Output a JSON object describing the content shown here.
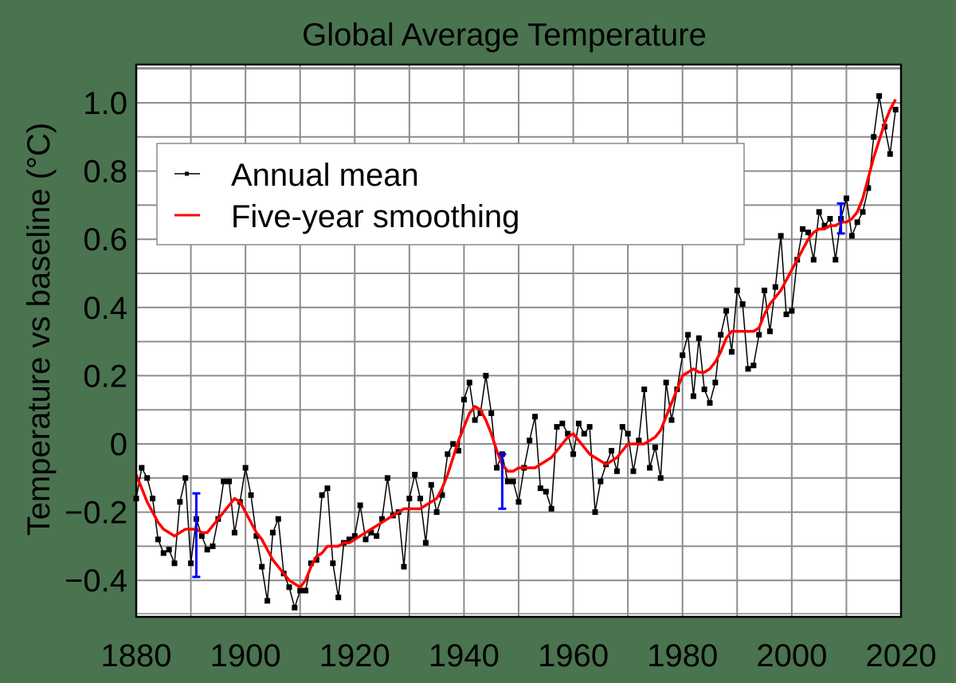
{
  "chart_data": {
    "type": "line",
    "title": "Global Average Temperature",
    "xlabel": "",
    "ylabel": "Temperature vs baseline (°C)",
    "xlim": [
      1880,
      2020
    ],
    "ylim": [
      -0.5,
      1.1
    ],
    "grid": true,
    "x_ticks": [
      1880,
      1900,
      1920,
      1940,
      1960,
      1980,
      2000,
      2020
    ],
    "x_tick_labels": [
      "1880",
      "1900",
      "1920",
      "1940",
      "1960",
      "1980",
      "2000",
      "2020"
    ],
    "y_ticks": [
      -0.4,
      -0.2,
      0,
      0.2,
      0.4,
      0.6,
      0.8,
      1.0
    ],
    "y_tick_labels": [
      "−0.4",
      "−0.2",
      "0",
      "0.2",
      "0.4",
      "0.6",
      "0.8",
      "1.0"
    ],
    "legend": {
      "position": "upper-left",
      "entries": [
        "Annual mean",
        "Five-year smoothing"
      ]
    },
    "x": [
      1880,
      1881,
      1882,
      1883,
      1884,
      1885,
      1886,
      1887,
      1888,
      1889,
      1890,
      1891,
      1892,
      1893,
      1894,
      1895,
      1896,
      1897,
      1898,
      1899,
      1900,
      1901,
      1902,
      1903,
      1904,
      1905,
      1906,
      1907,
      1908,
      1909,
      1910,
      1911,
      1912,
      1913,
      1914,
      1915,
      1916,
      1917,
      1918,
      1919,
      1920,
      1921,
      1922,
      1923,
      1924,
      1925,
      1926,
      1927,
      1928,
      1929,
      1930,
      1931,
      1932,
      1933,
      1934,
      1935,
      1936,
      1937,
      1938,
      1939,
      1940,
      1941,
      1942,
      1943,
      1944,
      1945,
      1946,
      1947,
      1948,
      1949,
      1950,
      1951,
      1952,
      1953,
      1954,
      1955,
      1956,
      1957,
      1958,
      1959,
      1960,
      1961,
      1962,
      1963,
      1964,
      1965,
      1966,
      1967,
      1968,
      1969,
      1970,
      1971,
      1972,
      1973,
      1974,
      1975,
      1976,
      1977,
      1978,
      1979,
      1980,
      1981,
      1982,
      1983,
      1984,
      1985,
      1986,
      1987,
      1988,
      1989,
      1990,
      1991,
      1992,
      1993,
      1994,
      1995,
      1996,
      1997,
      1998,
      1999,
      2000,
      2001,
      2002,
      2003,
      2004,
      2005,
      2006,
      2007,
      2008,
      2009,
      2010,
      2011,
      2012,
      2013,
      2014,
      2015,
      2016,
      2017,
      2018,
      2019
    ],
    "series": [
      {
        "name": "Annual mean",
        "color": "#000000",
        "marker": "square",
        "values": [
          -0.16,
          -0.07,
          -0.1,
          -0.16,
          -0.28,
          -0.32,
          -0.31,
          -0.35,
          -0.17,
          -0.1,
          -0.35,
          -0.22,
          -0.27,
          -0.31,
          -0.3,
          -0.22,
          -0.11,
          -0.11,
          -0.26,
          -0.17,
          -0.07,
          -0.15,
          -0.27,
          -0.36,
          -0.46,
          -0.26,
          -0.22,
          -0.38,
          -0.42,
          -0.48,
          -0.43,
          -0.43,
          -0.35,
          -0.34,
          -0.15,
          -0.13,
          -0.35,
          -0.45,
          -0.29,
          -0.28,
          -0.27,
          -0.18,
          -0.28,
          -0.26,
          -0.27,
          -0.22,
          -0.1,
          -0.21,
          -0.2,
          -0.36,
          -0.16,
          -0.09,
          -0.16,
          -0.29,
          -0.12,
          -0.2,
          -0.15,
          -0.03,
          0.0,
          -0.02,
          0.13,
          0.18,
          0.07,
          0.09,
          0.2,
          0.09,
          -0.07,
          -0.03,
          -0.11,
          -0.11,
          -0.17,
          -0.07,
          0.01,
          0.08,
          -0.13,
          -0.14,
          -0.19,
          0.05,
          0.06,
          0.03,
          -0.03,
          0.06,
          0.03,
          0.05,
          -0.2,
          -0.11,
          -0.06,
          -0.02,
          -0.08,
          0.05,
          0.03,
          -0.08,
          0.01,
          0.16,
          -0.07,
          -0.01,
          -0.1,
          0.18,
          0.07,
          0.16,
          0.26,
          0.32,
          0.14,
          0.31,
          0.16,
          0.12,
          0.18,
          0.32,
          0.39,
          0.27,
          0.45,
          0.41,
          0.22,
          0.23,
          0.32,
          0.45,
          0.33,
          0.46,
          0.61,
          0.38,
          0.39,
          0.54,
          0.63,
          0.62,
          0.54,
          0.68,
          0.64,
          0.66,
          0.54,
          0.66,
          0.72,
          0.61,
          0.65,
          0.68,
          0.75,
          0.9,
          1.02,
          0.93,
          0.85,
          0.98
        ]
      },
      {
        "name": "Five-year smoothing",
        "color": "#ff0000",
        "values": [
          -0.09,
          -0.13,
          -0.17,
          -0.2,
          -0.23,
          -0.25,
          -0.26,
          -0.27,
          -0.26,
          -0.25,
          -0.25,
          -0.25,
          -0.26,
          -0.26,
          -0.24,
          -0.22,
          -0.2,
          -0.18,
          -0.16,
          -0.17,
          -0.2,
          -0.23,
          -0.26,
          -0.28,
          -0.31,
          -0.34,
          -0.36,
          -0.38,
          -0.4,
          -0.41,
          -0.42,
          -0.4,
          -0.36,
          -0.33,
          -0.32,
          -0.3,
          -0.3,
          -0.3,
          -0.29,
          -0.29,
          -0.28,
          -0.27,
          -0.26,
          -0.25,
          -0.24,
          -0.23,
          -0.22,
          -0.21,
          -0.2,
          -0.19,
          -0.19,
          -0.19,
          -0.19,
          -0.18,
          -0.17,
          -0.16,
          -0.13,
          -0.09,
          -0.04,
          0.01,
          0.05,
          0.09,
          0.11,
          0.1,
          0.07,
          0.03,
          -0.02,
          -0.06,
          -0.08,
          -0.08,
          -0.07,
          -0.07,
          -0.07,
          -0.07,
          -0.06,
          -0.05,
          -0.04,
          -0.02,
          0.0,
          0.02,
          0.03,
          0.01,
          -0.01,
          -0.03,
          -0.04,
          -0.05,
          -0.06,
          -0.05,
          -0.04,
          -0.02,
          0.0,
          0.0,
          0.0,
          0.0,
          0.01,
          0.02,
          0.04,
          0.08,
          0.12,
          0.16,
          0.2,
          0.21,
          0.22,
          0.21,
          0.21,
          0.22,
          0.24,
          0.27,
          0.31,
          0.33,
          0.33,
          0.33,
          0.33,
          0.33,
          0.34,
          0.38,
          0.41,
          0.43,
          0.45,
          0.48,
          0.51,
          0.54,
          0.57,
          0.6,
          0.62,
          0.63,
          0.63,
          0.64,
          0.64,
          0.65,
          0.65,
          0.66,
          0.68,
          0.72,
          0.78,
          0.84,
          0.89,
          0.94,
          0.98,
          1.01
        ]
      }
    ],
    "error_bars": [
      {
        "x": 1891,
        "low": -0.39,
        "high": -0.145,
        "color": "#0000ff"
      },
      {
        "x": 1947,
        "low": -0.19,
        "high": -0.03,
        "color": "#0000ff"
      },
      {
        "x": 2009,
        "low": 0.617,
        "high": 0.705,
        "color": "#0000ff"
      }
    ]
  },
  "colors": {
    "background": "#4a7350",
    "plot_background": "#ffffff",
    "grid": "#8c8c8c",
    "annual": "#000000",
    "smoothing": "#ff0000",
    "error_bar": "#0000ff"
  }
}
